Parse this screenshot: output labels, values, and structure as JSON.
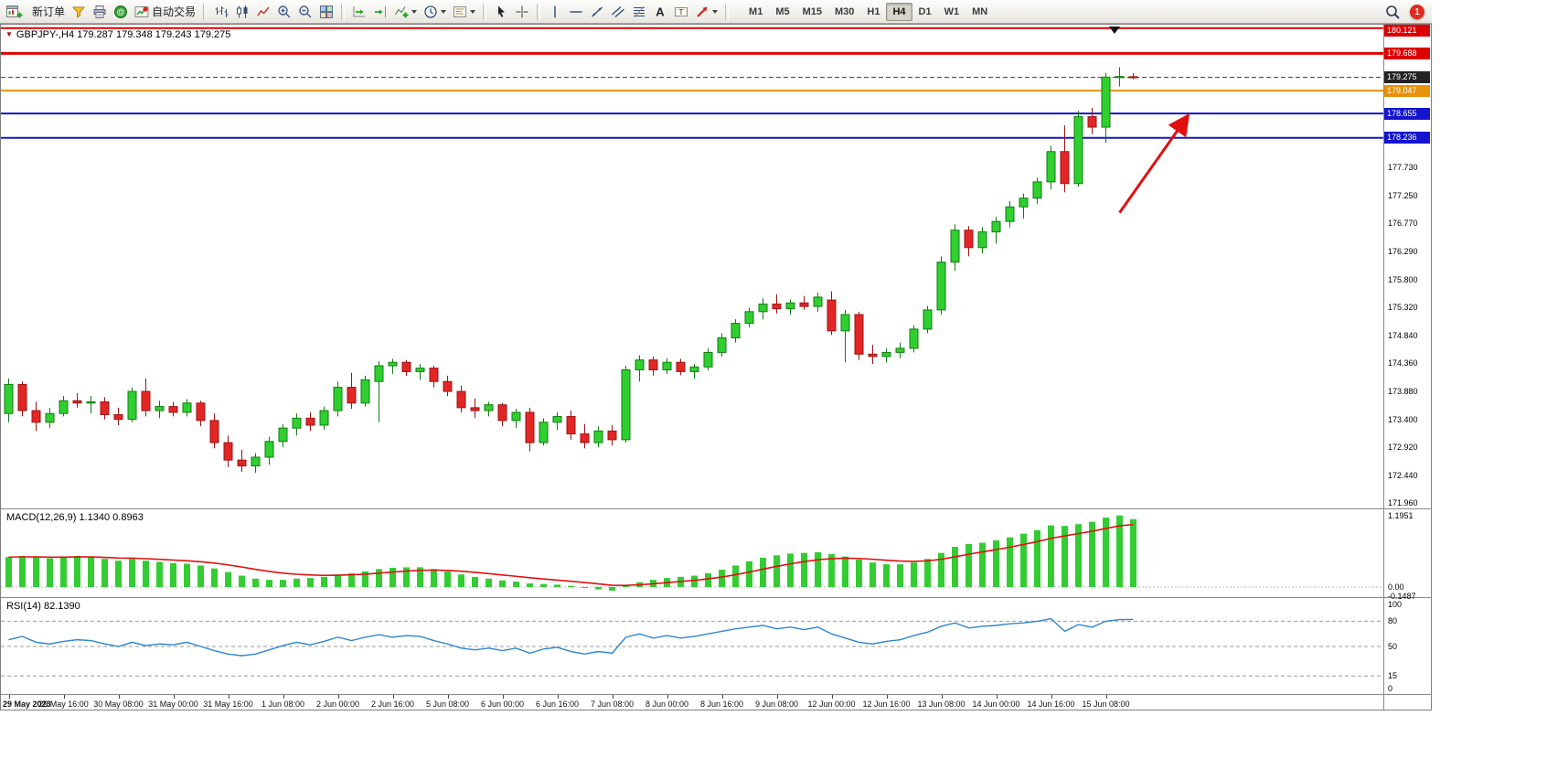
{
  "toolbar": {
    "new_order_label": "新订单",
    "autotrading_label": "自动交易",
    "timeframes": [
      "M1",
      "M5",
      "M15",
      "M30",
      "H1",
      "H4",
      "D1",
      "W1",
      "MN"
    ],
    "active_timeframe": "H4",
    "notification_count": "1",
    "icon_names": [
      "new-chart-icon",
      "metaeditor-icon",
      "print-icon",
      "community-icon",
      "autotrading-icon",
      "bar-chart-icon",
      "candlestick-chart-icon",
      "line-chart-icon",
      "zoom-in-icon",
      "zoom-out-icon",
      "tile-windows-icon",
      "auto-scroll-icon",
      "chart-shift-icon",
      "indicators-icon",
      "periods-icon",
      "templates-icon",
      "cursor-icon",
      "crosshair-icon",
      "vertical-line-icon",
      "horizontal-line-icon",
      "trendline-icon",
      "channel-icon",
      "fibonacci-icon",
      "text-icon",
      "text-label-icon",
      "arrows-icon",
      "search-icon",
      "notification-badge"
    ]
  },
  "chart": {
    "quote_header": "GBPJPY-,H4 179.287 179.348 179.243 179.275",
    "macd_label": "MACD(12,26,9) 1.1340 0.8963",
    "rsi_label": "RSI(14) 82.1390"
  },
  "chart_data": {
    "type": "candlestick",
    "symbol": "GBPJPY-",
    "timeframe": "H4",
    "current": {
      "open": 179.287,
      "high": 179.348,
      "low": 179.243,
      "close": 179.275
    },
    "colors": {
      "bull": "#2fcf2f",
      "bull_stroke": "#127c12",
      "bear": "#e22626",
      "bear_stroke": "#9c1414",
      "macd_hist": "#33cc33",
      "macd_signal": "#e01010",
      "rsi_line": "#2e86d0",
      "level_red": "#dd0000",
      "level_orange": "#e8920a",
      "level_blue": "#1414cc",
      "current_price_line": "#333333"
    },
    "candles": [
      [
        173.5,
        174.1,
        173.35,
        174.0
      ],
      [
        174.0,
        174.05,
        173.45,
        173.55
      ],
      [
        173.55,
        173.7,
        173.2,
        173.35
      ],
      [
        173.35,
        173.6,
        173.25,
        173.5
      ],
      [
        173.5,
        173.8,
        173.45,
        173.72
      ],
      [
        173.72,
        173.85,
        173.6,
        173.68
      ],
      [
        173.68,
        173.8,
        173.5,
        173.7
      ],
      [
        173.7,
        173.78,
        173.4,
        173.48
      ],
      [
        173.48,
        173.6,
        173.3,
        173.4
      ],
      [
        173.4,
        173.95,
        173.35,
        173.88
      ],
      [
        173.88,
        174.1,
        173.45,
        173.55
      ],
      [
        173.55,
        173.72,
        173.42,
        173.62
      ],
      [
        173.62,
        173.7,
        173.45,
        173.52
      ],
      [
        173.52,
        173.75,
        173.45,
        173.68
      ],
      [
        173.68,
        173.72,
        173.28,
        173.38
      ],
      [
        173.38,
        173.5,
        172.9,
        173.0
      ],
      [
        173.0,
        173.12,
        172.58,
        172.7
      ],
      [
        172.7,
        172.88,
        172.5,
        172.6
      ],
      [
        172.6,
        172.82,
        172.48,
        172.75
      ],
      [
        172.75,
        173.1,
        172.62,
        173.02
      ],
      [
        173.02,
        173.32,
        172.92,
        173.25
      ],
      [
        173.25,
        173.5,
        173.12,
        173.42
      ],
      [
        173.42,
        173.52,
        173.2,
        173.3
      ],
      [
        173.3,
        173.62,
        173.22,
        173.55
      ],
      [
        173.55,
        174.05,
        173.45,
        173.95
      ],
      [
        173.95,
        174.2,
        173.58,
        173.68
      ],
      [
        173.68,
        174.15,
        173.62,
        174.08
      ],
      [
        174.05,
        174.4,
        173.35,
        174.32
      ],
      [
        174.32,
        174.44,
        174.18,
        174.38
      ],
      [
        174.38,
        174.42,
        174.15,
        174.22
      ],
      [
        174.22,
        174.35,
        174.08,
        174.28
      ],
      [
        174.28,
        174.32,
        173.95,
        174.05
      ],
      [
        174.05,
        174.15,
        173.8,
        173.88
      ],
      [
        173.88,
        173.98,
        173.52,
        173.6
      ],
      [
        173.6,
        173.76,
        173.42,
        173.55
      ],
      [
        173.55,
        173.7,
        173.45,
        173.65
      ],
      [
        173.65,
        173.68,
        173.28,
        173.38
      ],
      [
        173.38,
        173.58,
        173.25,
        173.52
      ],
      [
        173.52,
        173.6,
        172.85,
        173.0
      ],
      [
        173.0,
        173.42,
        172.95,
        173.35
      ],
      [
        173.35,
        173.52,
        173.22,
        173.45
      ],
      [
        173.45,
        173.55,
        173.05,
        173.15
      ],
      [
        173.15,
        173.32,
        172.9,
        173.0
      ],
      [
        173.0,
        173.28,
        172.92,
        173.2
      ],
      [
        173.2,
        173.3,
        172.95,
        173.05
      ],
      [
        173.05,
        174.32,
        173.0,
        174.25
      ],
      [
        174.25,
        174.5,
        174.05,
        174.42
      ],
      [
        174.42,
        174.48,
        174.15,
        174.25
      ],
      [
        174.25,
        174.45,
        174.18,
        174.38
      ],
      [
        174.38,
        174.44,
        174.16,
        174.22
      ],
      [
        174.22,
        174.35,
        174.1,
        174.3
      ],
      [
        174.3,
        174.62,
        174.24,
        174.55
      ],
      [
        174.55,
        174.88,
        174.48,
        174.8
      ],
      [
        174.8,
        175.12,
        174.72,
        175.05
      ],
      [
        175.05,
        175.32,
        174.98,
        175.25
      ],
      [
        175.25,
        175.48,
        175.12,
        175.38
      ],
      [
        175.38,
        175.55,
        175.22,
        175.3
      ],
      [
        175.3,
        175.46,
        175.2,
        175.4
      ],
      [
        175.4,
        175.52,
        175.28,
        175.34
      ],
      [
        175.34,
        175.58,
        175.25,
        175.5
      ],
      [
        175.45,
        175.6,
        174.85,
        174.92
      ],
      [
        174.92,
        175.28,
        174.38,
        175.2
      ],
      [
        175.2,
        175.25,
        174.42,
        174.52
      ],
      [
        174.52,
        174.68,
        174.35,
        174.48
      ],
      [
        174.48,
        174.62,
        174.38,
        174.55
      ],
      [
        174.55,
        174.72,
        174.45,
        174.62
      ],
      [
        174.62,
        175.02,
        174.55,
        174.95
      ],
      [
        174.95,
        175.35,
        174.88,
        175.28
      ],
      [
        175.28,
        176.2,
        175.2,
        176.1
      ],
      [
        176.1,
        176.75,
        175.95,
        176.65
      ],
      [
        176.65,
        176.72,
        176.2,
        176.35
      ],
      [
        176.35,
        176.7,
        176.25,
        176.62
      ],
      [
        176.62,
        176.88,
        176.42,
        176.8
      ],
      [
        176.8,
        177.15,
        176.7,
        177.05
      ],
      [
        177.05,
        177.28,
        176.85,
        177.2
      ],
      [
        177.2,
        177.55,
        177.1,
        177.48
      ],
      [
        177.48,
        178.1,
        177.35,
        178.0
      ],
      [
        178.0,
        178.45,
        177.3,
        177.45
      ],
      [
        177.45,
        178.7,
        177.4,
        178.6
      ],
      [
        178.6,
        178.75,
        178.3,
        178.42
      ],
      [
        178.42,
        179.35,
        178.15,
        179.28
      ],
      [
        179.28,
        179.45,
        179.12,
        179.29
      ],
      [
        179.287,
        179.348,
        179.243,
        179.275
      ]
    ],
    "macd_hist": [
      0.5,
      0.52,
      0.5,
      0.48,
      0.5,
      0.52,
      0.5,
      0.47,
      0.44,
      0.47,
      0.44,
      0.42,
      0.4,
      0.39,
      0.36,
      0.31,
      0.25,
      0.19,
      0.14,
      0.12,
      0.12,
      0.14,
      0.15,
      0.17,
      0.21,
      0.23,
      0.26,
      0.3,
      0.32,
      0.33,
      0.33,
      0.3,
      0.26,
      0.21,
      0.17,
      0.14,
      0.11,
      0.09,
      0.06,
      0.05,
      0.04,
      0.02,
      -0.01,
      -0.04,
      -0.06,
      0.02,
      0.08,
      0.12,
      0.15,
      0.17,
      0.19,
      0.23,
      0.29,
      0.36,
      0.43,
      0.49,
      0.53,
      0.56,
      0.57,
      0.58,
      0.55,
      0.51,
      0.46,
      0.41,
      0.38,
      0.38,
      0.41,
      0.47,
      0.57,
      0.67,
      0.72,
      0.74,
      0.78,
      0.83,
      0.89,
      0.95,
      1.03,
      1.02,
      1.05,
      1.09,
      1.16,
      1.1951,
      1.134
    ],
    "macd_axis": [
      {
        "text": "1.1951",
        "value": 1.1951
      },
      {
        "text": "0.00",
        "value": 0
      },
      {
        "text": "-0.1487",
        "value": -0.1487
      }
    ],
    "rsi": [
      58,
      62,
      55,
      53,
      56,
      58,
      57,
      53,
      50,
      55,
      51,
      53,
      52,
      55,
      50,
      45,
      41,
      39,
      41,
      46,
      51,
      55,
      52,
      56,
      61,
      57,
      61,
      64,
      61,
      63,
      62,
      57,
      53,
      48,
      46,
      48,
      45,
      48,
      42,
      47,
      49,
      44,
      41,
      44,
      42,
      61,
      65,
      60,
      63,
      60,
      62,
      65,
      68,
      71,
      73,
      75,
      71,
      73,
      70,
      73,
      65,
      60,
      55,
      53,
      56,
      58,
      63,
      67,
      74,
      78,
      72,
      74,
      75,
      77,
      78,
      80,
      83,
      68,
      76,
      73,
      80,
      82,
      82.14
    ],
    "rsi_levels_dashed": [
      80,
      50,
      15
    ],
    "rsi_axis": [
      {
        "text": "100",
        "value": 100
      },
      {
        "text": "80",
        "value": 80
      },
      {
        "text": "50",
        "value": 50
      },
      {
        "text": "15",
        "value": 15
      },
      {
        "text": "0",
        "value": 0
      }
    ],
    "levels": [
      {
        "price": 180.121,
        "color": "#dd0000",
        "width": 2,
        "style": "solid",
        "role": "resistance"
      },
      {
        "price": 179.688,
        "color": "#dd0000",
        "width": 3,
        "style": "solid",
        "role": "resistance"
      },
      {
        "price": 179.275,
        "color": "#333333",
        "width": 1,
        "style": "dash",
        "role": "current-price"
      },
      {
        "price": 179.047,
        "color": "#e8920a",
        "width": 2,
        "style": "solid",
        "role": "level"
      },
      {
        "price": 178.655,
        "color": "#1414cc",
        "width": 2,
        "style": "solid",
        "role": "support"
      },
      {
        "price": 178.236,
        "color": "#1414cc",
        "width": 2,
        "style": "solid",
        "role": "support"
      }
    ],
    "price_badges": [
      {
        "text": "180.121",
        "price": 180.121,
        "bg": "#dd0000"
      },
      {
        "text": "179.688",
        "price": 179.688,
        "bg": "#dd0000"
      },
      {
        "text": "179.275",
        "price": 179.275,
        "bg": "#222222"
      },
      {
        "text": "179.047",
        "price": 179.047,
        "bg": "#e8920a"
      },
      {
        "text": "178.655",
        "price": 178.655,
        "bg": "#1414cc"
      },
      {
        "text": "178.236",
        "price": 178.236,
        "bg": "#1414cc"
      }
    ],
    "y_axis_ticks": [
      "177.730",
      "177.250",
      "176.770",
      "176.290",
      "175.800",
      "175.320",
      "174.840",
      "174.360",
      "173.880",
      "173.400",
      "172.920",
      "172.440",
      "171.960"
    ],
    "x_axis_labels": [
      "29 May 2023",
      "29 May 16:00",
      "30 May 08:00",
      "31 May 00:00",
      "31 May 16:00",
      "1 Jun 08:00",
      "2 Jun 00:00",
      "2 Jun 16:00",
      "5 Jun 08:00",
      "6 Jun 00:00",
      "6 Jun 16:00",
      "7 Jun 08:00",
      "8 Jun 00:00",
      "8 Jun 16:00",
      "9 Jun 08:00",
      "12 Jun 00:00",
      "12 Jun 16:00",
      "13 Jun 08:00",
      "14 Jun 00:00",
      "14 Jun 16:00",
      "15 Jun 08:00"
    ],
    "annotation_arrow": {
      "from_index": 81,
      "from_price": 176.95,
      "to_index": 86,
      "to_price": 178.62,
      "color": "#e01010"
    }
  }
}
